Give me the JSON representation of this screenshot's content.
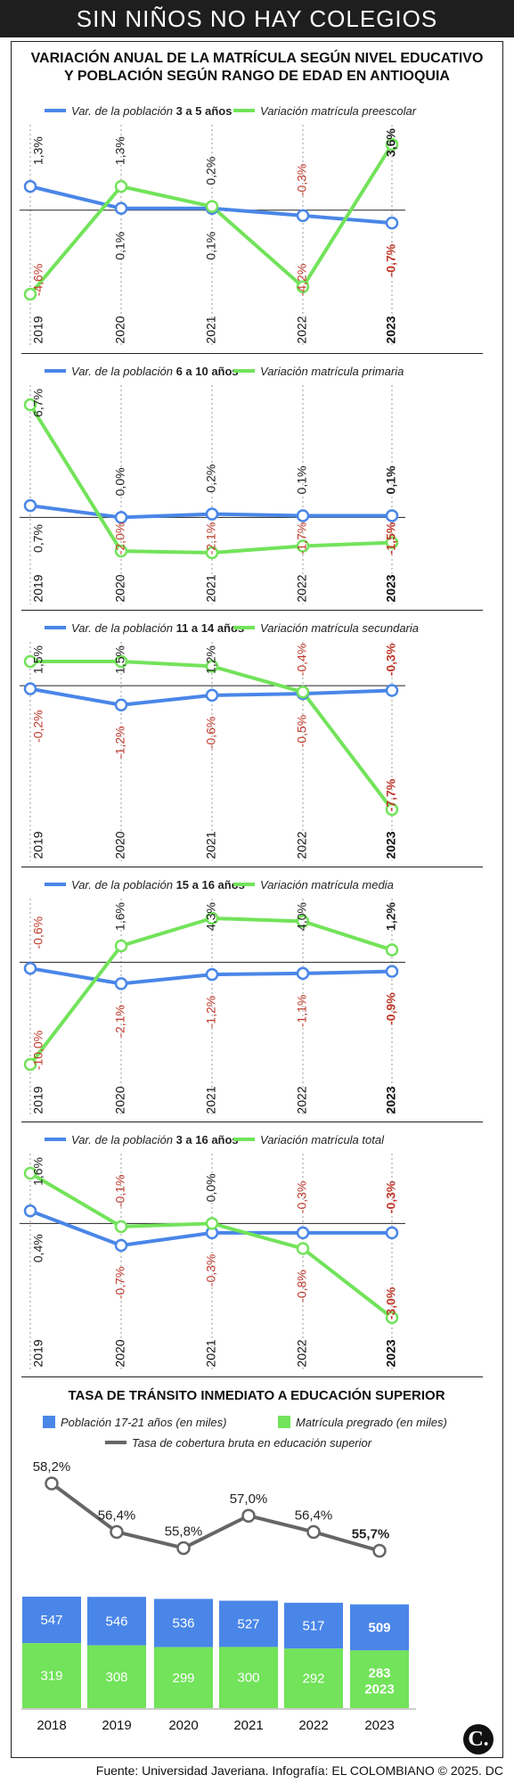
{
  "header": {
    "title": "SIN NIÑOS NO HAY COLEGIOS"
  },
  "main_title_lines": [
    "VARIACIÓN ANUAL DE LA MATRÍCULA SEGÚN NIVEL EDUCATIVO",
    "Y POBLACIÓN SEGÚN RANGO DE EDAD EN ANTIOQUIA"
  ],
  "colors": {
    "population": "#4a86e8",
    "enrollment": "#72e35a",
    "coverage": "#666666",
    "negative": "#c0392b"
  },
  "chart_data": [
    {
      "type": "line",
      "categories": [
        "2019",
        "2020",
        "2021",
        "2022",
        "2023"
      ],
      "legend": [
        {
          "pre": "Var. de la población ",
          "bold": "3 a 5 años"
        },
        {
          "pre": "Variación matrícula preescolar",
          "bold": ""
        }
      ],
      "series": [
        {
          "key": "population",
          "values": [
            1.3,
            0.1,
            0.1,
            -0.3,
            -0.7
          ],
          "labels": [
            "1,3%",
            "0,1%",
            "0,1%",
            "-0,3%",
            "-0,7%"
          ]
        },
        {
          "key": "enrollment",
          "values": [
            -4.6,
            1.3,
            0.2,
            -4.2,
            3.6
          ],
          "labels": [
            "-4,6%",
            "1,3%",
            "0,2%",
            "-4,2%",
            "3,6%"
          ]
        }
      ]
    },
    {
      "type": "line",
      "categories": [
        "2019",
        "2020",
        "2021",
        "2022",
        "2023"
      ],
      "legend": [
        {
          "pre": "Var. de la población ",
          "bold": "6 a 10 años"
        },
        {
          "pre": "Variación matrícula primaria",
          "bold": ""
        }
      ],
      "series": [
        {
          "key": "population",
          "values": [
            0.7,
            0.0,
            0.2,
            0.1,
            0.1
          ],
          "labels": [
            "0,7%",
            "0,0%",
            "0,2%",
            "0,1%",
            "0,1%"
          ]
        },
        {
          "key": "enrollment",
          "values": [
            6.7,
            -2.0,
            -2.1,
            -1.7,
            -1.5
          ],
          "labels": [
            "6,7%",
            "-2,0%",
            "-2,1%",
            "-1,7%",
            "-1,5%"
          ]
        }
      ]
    },
    {
      "type": "line",
      "categories": [
        "2019",
        "2020",
        "2021",
        "2022",
        "2023"
      ],
      "legend": [
        {
          "pre": "Var. de la población ",
          "bold": "11 a 14 años"
        },
        {
          "pre": "Variación matrícula secundaria",
          "bold": ""
        }
      ],
      "series": [
        {
          "key": "population",
          "values": [
            -0.2,
            -1.2,
            -0.6,
            -0.5,
            -0.3
          ],
          "labels": [
            "-0,2%",
            "-1,2%",
            "-0,6%",
            "-0,5%",
            "-0,3%"
          ]
        },
        {
          "key": "enrollment",
          "values": [
            1.5,
            1.5,
            1.2,
            -0.4,
            -7.7
          ],
          "labels": [
            "1,5%",
            "1,5%",
            "1,2%",
            "-0,4%",
            "-7,7%"
          ]
        }
      ]
    },
    {
      "type": "line",
      "categories": [
        "2019",
        "2020",
        "2021",
        "2022",
        "2023"
      ],
      "legend": [
        {
          "pre": "Var. de la población ",
          "bold": "15 a 16 años"
        },
        {
          "pre": "Variación matrícula media",
          "bold": ""
        }
      ],
      "series": [
        {
          "key": "population",
          "values": [
            -0.6,
            -2.1,
            -1.2,
            -1.1,
            -0.9
          ],
          "labels": [
            "-0,6%",
            "-2,1%",
            "-1,2%",
            "-1,1%",
            "-0,9%"
          ]
        },
        {
          "key": "enrollment",
          "values": [
            -10.0,
            1.6,
            4.3,
            4.0,
            1.2
          ],
          "labels": [
            "-10,0%",
            "1,6%",
            "4,3%",
            "4,0%",
            "1,2%"
          ]
        }
      ]
    },
    {
      "type": "line",
      "categories": [
        "2019",
        "2020",
        "2021",
        "2022",
        "2023"
      ],
      "legend": [
        {
          "pre": "Var. de la población ",
          "bold": "3 a 16 años"
        },
        {
          "pre": "Variación matrícula total",
          "bold": ""
        }
      ],
      "series": [
        {
          "key": "population",
          "values": [
            0.4,
            -0.7,
            -0.3,
            -0.3,
            -0.3
          ],
          "labels": [
            "0,4%",
            "-0,7%",
            "-0,3%",
            "-0,3%",
            "-0,3%"
          ]
        },
        {
          "key": "enrollment",
          "values": [
            1.6,
            -0.1,
            0.0,
            -0.8,
            -3.0
          ],
          "labels": [
            "1,6%",
            "-0,1%",
            "0,0%",
            "-0,8%",
            "-3,0%"
          ]
        }
      ]
    },
    {
      "type": "bar",
      "title": "TASA DE TRÁNSITO INMEDIATO A EDUCACIÓN SUPERIOR",
      "categories": [
        "2018",
        "2019",
        "2020",
        "2021",
        "2022",
        "2023"
      ],
      "legend": [
        "Población 17-21 años (en miles)",
        "Matrícula pregrado (en miles)",
        "Tasa de cobertura bruta en educación superior"
      ],
      "series": [
        {
          "name": "Población 17-21 años (en miles)",
          "values": [
            547,
            546,
            536,
            527,
            517,
            509
          ],
          "labels": [
            "547",
            "546",
            "536",
            "527",
            "517",
            "509"
          ]
        },
        {
          "name": "Matrícula pregrado (en miles)",
          "values": [
            319,
            308,
            299,
            300,
            292,
            283
          ],
          "labels": [
            "319",
            "308",
            "299",
            "300",
            "292",
            "283"
          ]
        },
        {
          "name": "Tasa de cobertura bruta en educación superior",
          "type": "line",
          "values": [
            58.2,
            56.4,
            55.8,
            57.0,
            56.4,
            55.7
          ],
          "labels": [
            "58,2%",
            "56,4%",
            "55,8%",
            "57,0%",
            "56,4%",
            "55,7%"
          ]
        }
      ]
    }
  ],
  "footer": {
    "text": "Fuente: Universidad Javeriana. Infografía: EL COLOMBIANO © 2025. DC",
    "logo": "C."
  }
}
